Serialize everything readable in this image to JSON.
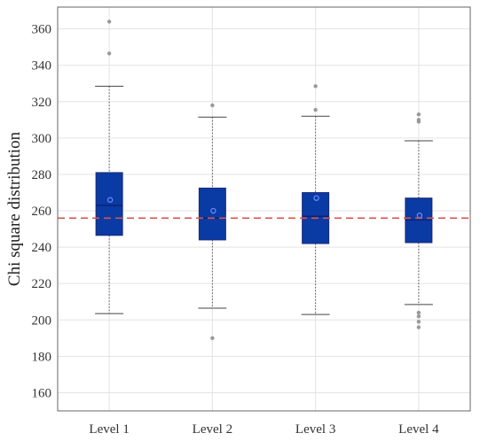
{
  "chart_data": {
    "type": "box",
    "ylabel": "Chi square distribution",
    "xlabel": "",
    "ylim": [
      150,
      372
    ],
    "yticks": [
      160,
      180,
      200,
      220,
      240,
      260,
      280,
      300,
      320,
      340,
      360
    ],
    "grid": true,
    "reference_line": {
      "y": 256,
      "style": "dashed",
      "color": "#d9534f"
    },
    "categories": [
      "Level 1",
      "Level 2",
      "Level 3",
      "Level 4"
    ],
    "boxes": [
      {
        "category": "Level 1",
        "whisker_low": 203.5,
        "q1": 246.5,
        "median": 263,
        "q3": 281,
        "whisker_high": 328.5,
        "mean": 266,
        "outliers": [
          346.5,
          364
        ]
      },
      {
        "category": "Level 2",
        "whisker_low": 206.5,
        "q1": 244,
        "median": 256,
        "q3": 272.5,
        "whisker_high": 311.5,
        "mean": 260,
        "outliers": [
          190,
          318
        ]
      },
      {
        "category": "Level 3",
        "whisker_low": 203,
        "q1": 242,
        "median": 257,
        "q3": 270,
        "whisker_high": 312,
        "mean": 267,
        "outliers": [
          315.5,
          328.5
        ]
      },
      {
        "category": "Level 4",
        "whisker_low": 208.5,
        "q1": 242.5,
        "median": 255,
        "q3": 267,
        "whisker_high": 298.5,
        "mean": 257.5,
        "outliers": [
          196,
          199,
          202,
          204,
          309,
          310,
          313
        ]
      }
    ],
    "colors": {
      "box_fill": "#0a3aa3",
      "box_edge": "#1b2a7a",
      "median": "#0b1f6e",
      "mean_marker": "#6f8dff",
      "whisker": "#555555",
      "outlier": "#999999",
      "grid": "#e3e3e3",
      "frame": "#666666"
    }
  }
}
